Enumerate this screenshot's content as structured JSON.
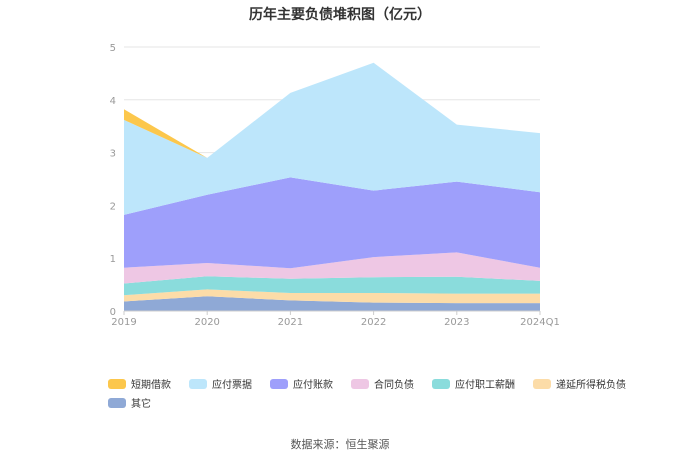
{
  "title": "历年主要负债堆积图（亿元）",
  "source": "数据来源：恒生聚源",
  "chart_data": {
    "type": "area",
    "stacked": true,
    "title": "历年主要负债堆积图（亿元）",
    "categories": [
      "2019",
      "2020",
      "2021",
      "2022",
      "2023",
      "2024Q1"
    ],
    "ylim": [
      0,
      5
    ],
    "yticks": [
      0,
      1,
      2,
      3,
      4,
      5
    ],
    "grid": true,
    "legend_position": "bottom",
    "series": [
      {
        "name": "其它",
        "color": "#8fa9d6",
        "values": [
          0.18,
          0.28,
          0.2,
          0.16,
          0.15,
          0.15
        ]
      },
      {
        "name": "递延所得税负债",
        "color": "#fcdca8",
        "values": [
          0.12,
          0.13,
          0.14,
          0.18,
          0.18,
          0.18
        ]
      },
      {
        "name": "应付职工薪酬",
        "color": "#8adcdc",
        "values": [
          0.22,
          0.25,
          0.27,
          0.3,
          0.32,
          0.24
        ]
      },
      {
        "name": "合同负债",
        "color": "#eec7e4",
        "values": [
          0.3,
          0.25,
          0.2,
          0.38,
          0.46,
          0.25
        ]
      },
      {
        "name": "应付账款",
        "color": "#9e9ffb",
        "values": [
          1.0,
          1.29,
          1.72,
          1.26,
          1.34,
          1.43
        ]
      },
      {
        "name": "应付票据",
        "color": "#bde6fb",
        "values": [
          1.8,
          0.7,
          1.6,
          2.42,
          1.08,
          1.12
        ]
      },
      {
        "name": "短期借款",
        "color": "#fcc74c",
        "values": [
          0.2,
          0.0,
          0.0,
          0.0,
          0.0,
          0.0
        ]
      }
    ],
    "legend_order": [
      "短期借款",
      "应付票据",
      "应付账款",
      "合同负债",
      "应付职工薪酬",
      "递延所得税负债",
      "其它"
    ]
  }
}
